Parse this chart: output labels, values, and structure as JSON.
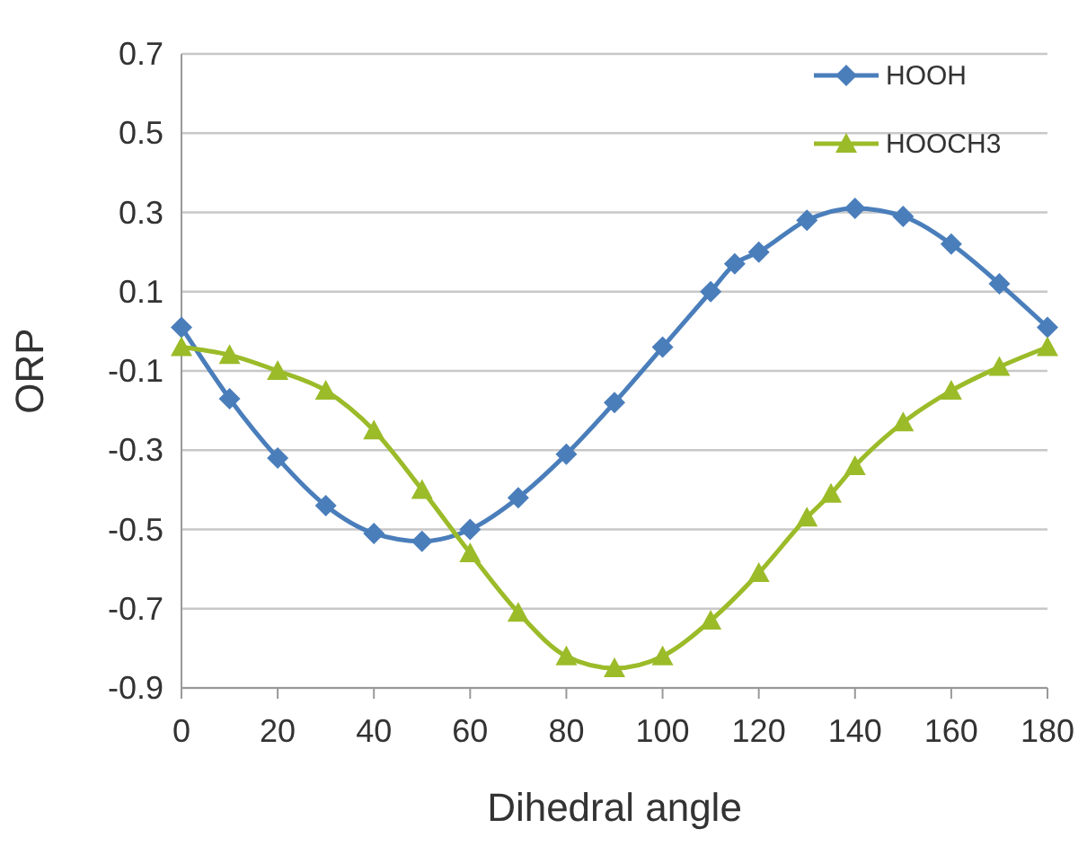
{
  "chart_data": {
    "type": "line",
    "xlabel": "Dihedral angle",
    "ylabel": "ORP",
    "xlim": [
      0,
      180
    ],
    "xticks": [
      0,
      20,
      40,
      60,
      80,
      100,
      120,
      140,
      160,
      180
    ],
    "ylim": [
      -0.9,
      0.7
    ],
    "yticks": [
      -0.9,
      -0.7,
      -0.5,
      -0.3,
      -0.1,
      0.1,
      0.3,
      0.5,
      0.7
    ],
    "grid": "y",
    "legend": "top right",
    "line_style": "solid",
    "series": [
      {
        "name": "HOOH",
        "color": "#4a7ebb",
        "marker": "diamond",
        "x": [
          0,
          10,
          20,
          30,
          40,
          50,
          60,
          70,
          80,
          90,
          100,
          110,
          115,
          120,
          130,
          140,
          150,
          160,
          170,
          180
        ],
        "values": [
          0.01,
          -0.17,
          -0.32,
          -0.44,
          -0.51,
          -0.53,
          -0.5,
          -0.42,
          -0.31,
          -0.18,
          -0.04,
          0.1,
          0.17,
          0.2,
          0.28,
          0.31,
          0.29,
          0.22,
          0.12,
          0.01
        ]
      },
      {
        "name": "HOOCH3",
        "color": "#9bbb29",
        "marker": "triangle",
        "x": [
          0,
          10,
          20,
          30,
          40,
          50,
          60,
          70,
          80,
          90,
          100,
          110,
          120,
          130,
          135,
          140,
          150,
          160,
          170,
          180
        ],
        "values": [
          -0.04,
          -0.06,
          -0.1,
          -0.15,
          -0.25,
          -0.4,
          -0.56,
          -0.71,
          -0.82,
          -0.85,
          -0.82,
          -0.73,
          -0.61,
          -0.47,
          -0.41,
          -0.34,
          -0.23,
          -0.15,
          -0.09,
          -0.04
        ]
      }
    ]
  }
}
